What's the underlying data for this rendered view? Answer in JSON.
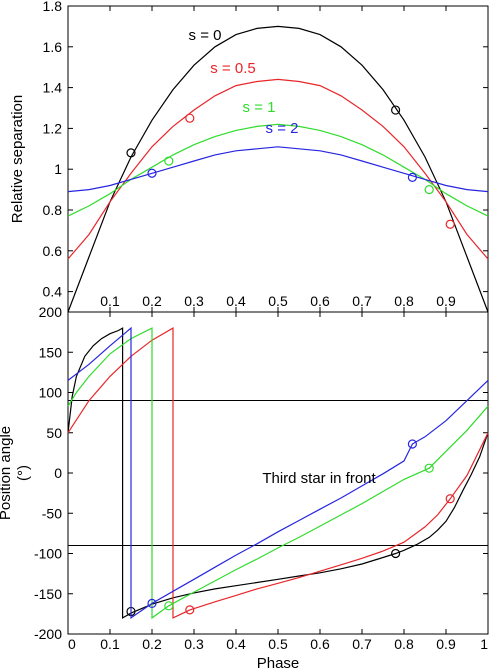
{
  "chart_data": [
    {
      "type": "line",
      "ylabel": "Relative separation",
      "xlim": [
        0,
        1
      ],
      "ylim": [
        0.3,
        1.8
      ],
      "yticks": [
        0.4,
        0.6,
        0.8,
        1,
        1.2,
        1.4,
        1.6,
        1.8
      ],
      "ytick_labels": [
        "0.4",
        "0.6",
        "0.8",
        "1",
        "1.2",
        "1.4",
        "1.6",
        "1.8"
      ],
      "inner_xticks": [
        0.1,
        0.2,
        0.3,
        0.4,
        0.5,
        0.6,
        0.7,
        0.8,
        0.9
      ],
      "inner_xtick_labels": [
        "0.1",
        "0.2",
        "0.3",
        "0.4",
        "0.5",
        "0.6",
        "0.7",
        "0.8",
        "0.9"
      ],
      "grid": false,
      "series": [
        {
          "name": "s = 0",
          "color": "#000000",
          "x": [
            0,
            0.05,
            0.1,
            0.15,
            0.2,
            0.25,
            0.3,
            0.35,
            0.4,
            0.45,
            0.5,
            0.55,
            0.6,
            0.65,
            0.7,
            0.75,
            0.8,
            0.85,
            0.9,
            0.95,
            1
          ],
          "y": [
            0.3,
            0.57,
            0.84,
            1.06,
            1.24,
            1.39,
            1.51,
            1.6,
            1.66,
            1.69,
            1.7,
            1.69,
            1.66,
            1.6,
            1.51,
            1.39,
            1.24,
            1.06,
            0.84,
            0.57,
            0.3
          ],
          "markers": [
            {
              "x": 0.15,
              "y": 1.08
            },
            {
              "x": 0.78,
              "y": 1.29
            }
          ]
        },
        {
          "name": "s = 0.5",
          "color": "#e8262a",
          "x": [
            0,
            0.05,
            0.1,
            0.15,
            0.2,
            0.25,
            0.3,
            0.35,
            0.4,
            0.45,
            0.5,
            0.55,
            0.6,
            0.65,
            0.7,
            0.75,
            0.8,
            0.85,
            0.9,
            0.95,
            1
          ],
          "y": [
            0.56,
            0.68,
            0.84,
            0.98,
            1.11,
            1.21,
            1.29,
            1.36,
            1.41,
            1.43,
            1.44,
            1.43,
            1.41,
            1.36,
            1.29,
            1.21,
            1.11,
            0.98,
            0.84,
            0.68,
            0.56
          ],
          "markers": [
            {
              "x": 0.29,
              "y": 1.25
            },
            {
              "x": 0.91,
              "y": 0.73
            }
          ]
        },
        {
          "name": "s = 1",
          "color": "#2fdc2c",
          "x": [
            0,
            0.05,
            0.1,
            0.15,
            0.2,
            0.25,
            0.3,
            0.35,
            0.4,
            0.45,
            0.5,
            0.55,
            0.6,
            0.65,
            0.7,
            0.75,
            0.8,
            0.85,
            0.9,
            0.95,
            1
          ],
          "y": [
            0.77,
            0.82,
            0.88,
            0.95,
            1.01,
            1.07,
            1.12,
            1.16,
            1.19,
            1.21,
            1.22,
            1.21,
            1.19,
            1.16,
            1.12,
            1.07,
            1.01,
            0.95,
            0.88,
            0.82,
            0.77
          ],
          "markers": [
            {
              "x": 0.24,
              "y": 1.04
            },
            {
              "x": 0.86,
              "y": 0.9
            }
          ]
        },
        {
          "name": "s = 2",
          "color": "#2626e0",
          "x": [
            0,
            0.05,
            0.1,
            0.15,
            0.2,
            0.25,
            0.3,
            0.35,
            0.4,
            0.45,
            0.5,
            0.55,
            0.6,
            0.65,
            0.7,
            0.75,
            0.8,
            0.85,
            0.9,
            0.95,
            1
          ],
          "y": [
            0.89,
            0.9,
            0.92,
            0.95,
            0.98,
            1.01,
            1.04,
            1.07,
            1.09,
            1.1,
            1.11,
            1.1,
            1.09,
            1.07,
            1.04,
            1.01,
            0.98,
            0.95,
            0.92,
            0.9,
            0.89
          ],
          "markers": [
            {
              "x": 0.2,
              "y": 0.98
            },
            {
              "x": 0.82,
              "y": 0.96
            }
          ]
        }
      ]
    },
    {
      "type": "line",
      "xlabel": "Phase",
      "ylabel": "Position angle",
      "ylabel_unit": "(°)",
      "xlim": [
        0,
        1
      ],
      "ylim": [
        -200,
        200
      ],
      "xticks": [
        0,
        0.1,
        0.2,
        0.3,
        0.4,
        0.5,
        0.6,
        0.7,
        0.8,
        0.9,
        1
      ],
      "xtick_labels": [
        "0",
        "0.1",
        "0.2",
        "0.3",
        "0.4",
        "0.5",
        "0.6",
        "0.7",
        "0.8",
        "0.9",
        "1"
      ],
      "yticks": [
        -200,
        -150,
        -100,
        -50,
        0,
        50,
        100,
        150,
        200
      ],
      "ytick_labels": [
        "-200",
        "-150",
        "-100",
        "-50",
        "0",
        "50",
        "100",
        "150",
        "200"
      ],
      "hlines": [
        90,
        -90
      ],
      "annotation": "Third star in front",
      "grid": false,
      "series": [
        {
          "name": "s = 0",
          "color": "#000000",
          "segments": [
            {
              "x": [
                0,
                0.01,
                0.02,
                0.04,
                0.06,
                0.08,
                0.1,
                0.12,
                0.13
              ],
              "y": [
                50,
                95,
                120,
                145,
                158,
                167,
                173,
                177,
                180
              ]
            },
            {
              "x": [
                0.13,
                0.15,
                0.2,
                0.25,
                0.3,
                0.35,
                0.4,
                0.45,
                0.5,
                0.55,
                0.6,
                0.65,
                0.7,
                0.75,
                0.78,
                0.8,
                0.83,
                0.86,
                0.88,
                0.9,
                0.92,
                0.94,
                0.96,
                0.98,
                1
              ],
              "y": [
                -180,
                -174,
                -163,
                -155,
                -149,
                -144,
                -140,
                -136,
                -132,
                -128,
                -124,
                -119,
                -113,
                -105,
                -100,
                -96,
                -89,
                -80,
                -71,
                -60,
                -43,
                -22,
                -2,
                20,
                50
              ]
            }
          ],
          "markers": [
            {
              "x": 0.15,
              "y": -172
            },
            {
              "x": 0.78,
              "y": -100
            }
          ]
        },
        {
          "name": "s = 0.5",
          "color": "#e8262a",
          "segments": [
            {
              "x": [
                0,
                0.05,
                0.1,
                0.15,
                0.2,
                0.25
              ],
              "y": [
                50,
                90,
                120,
                145,
                165,
                180
              ]
            },
            {
              "x": [
                0.25,
                0.29,
                0.35,
                0.4,
                0.45,
                0.5,
                0.55,
                0.6,
                0.65,
                0.7,
                0.75,
                0.8,
                0.85,
                0.88,
                0.91,
                0.95,
                1
              ],
              "y": [
                -180,
                -170,
                -160,
                -152,
                -144,
                -137,
                -130,
                -122,
                -114,
                -106,
                -97,
                -86,
                -67,
                -52,
                -32,
                -3,
                50
              ]
            }
          ],
          "markers": [
            {
              "x": 0.29,
              "y": -170
            },
            {
              "x": 0.91,
              "y": -32
            }
          ]
        },
        {
          "name": "s = 1",
          "color": "#2fdc2c",
          "segments": [
            {
              "x": [
                0,
                0.02,
                0.05,
                0.1,
                0.15,
                0.2
              ],
              "y": [
                83,
                100,
                120,
                148,
                167,
                180
              ]
            },
            {
              "x": [
                0.2,
                0.24,
                0.3,
                0.35,
                0.4,
                0.45,
                0.5,
                0.55,
                0.6,
                0.65,
                0.7,
                0.75,
                0.8,
                0.86,
                0.9,
                0.95,
                1
              ],
              "y": [
                -180,
                -165,
                -148,
                -134,
                -120,
                -107,
                -93,
                -80,
                -66,
                -52,
                -38,
                -23,
                -8,
                6,
                27,
                53,
                83
              ]
            }
          ],
          "markers": [
            {
              "x": 0.24,
              "y": -165
            },
            {
              "x": 0.86,
              "y": 6
            }
          ]
        },
        {
          "name": "s = 2",
          "color": "#2626e0",
          "segments": [
            {
              "x": [
                0,
                0.05,
                0.1,
                0.15
              ],
              "y": [
                115,
                135,
                158,
                180
              ]
            },
            {
              "x": [
                0.15,
                0.2,
                0.25,
                0.3,
                0.35,
                0.4,
                0.45,
                0.5,
                0.55,
                0.6,
                0.65,
                0.7,
                0.75,
                0.8,
                0.82,
                0.85,
                0.9,
                0.95,
                1
              ],
              "y": [
                -180,
                -162,
                -147,
                -132,
                -117,
                -102,
                -88,
                -73,
                -59,
                -45,
                -31,
                -16,
                -1,
                15,
                36,
                45,
                65,
                90,
                115
              ]
            }
          ],
          "markers": [
            {
              "x": 0.2,
              "y": -162
            },
            {
              "x": 0.82,
              "y": 36
            }
          ]
        }
      ]
    }
  ]
}
